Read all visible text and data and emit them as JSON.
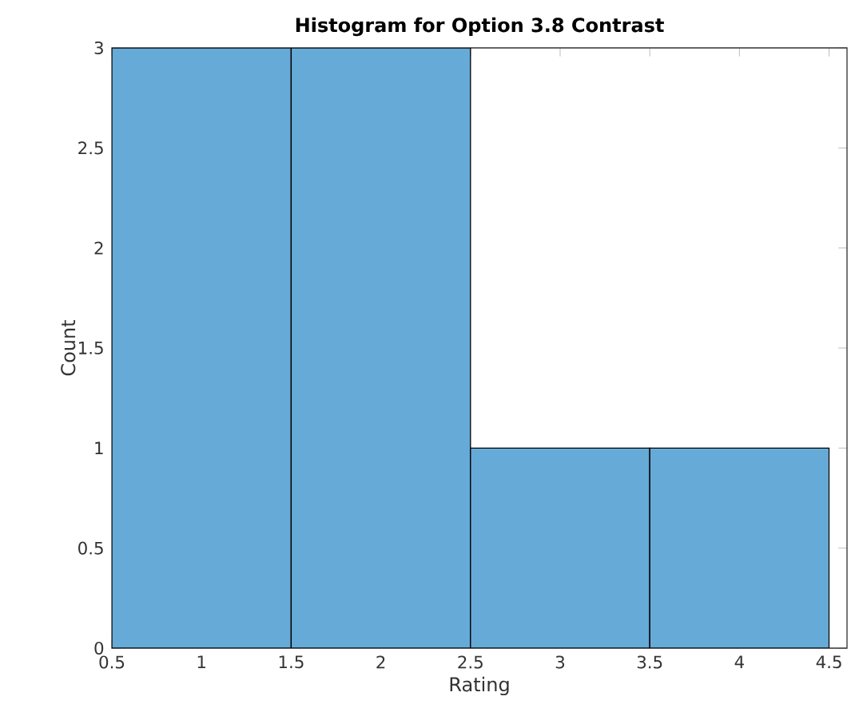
{
  "chart_data": {
    "type": "histogram",
    "title": "Histogram for Option 3.8 Contrast",
    "xlabel": "Rating",
    "ylabel": "Count",
    "bins": [
      0.5,
      1.5,
      2.5,
      3.5,
      4.5
    ],
    "values": [
      3,
      3,
      1,
      1
    ],
    "color": "#66aad7",
    "xlim": [
      0.5,
      4.6
    ],
    "ylim": [
      0,
      3
    ],
    "xticks": [
      0.5,
      1,
      1.5,
      2,
      2.5,
      3,
      3.5,
      4,
      4.5
    ],
    "yticks": [
      0,
      0.5,
      1,
      1.5,
      2,
      2.5,
      3
    ]
  }
}
